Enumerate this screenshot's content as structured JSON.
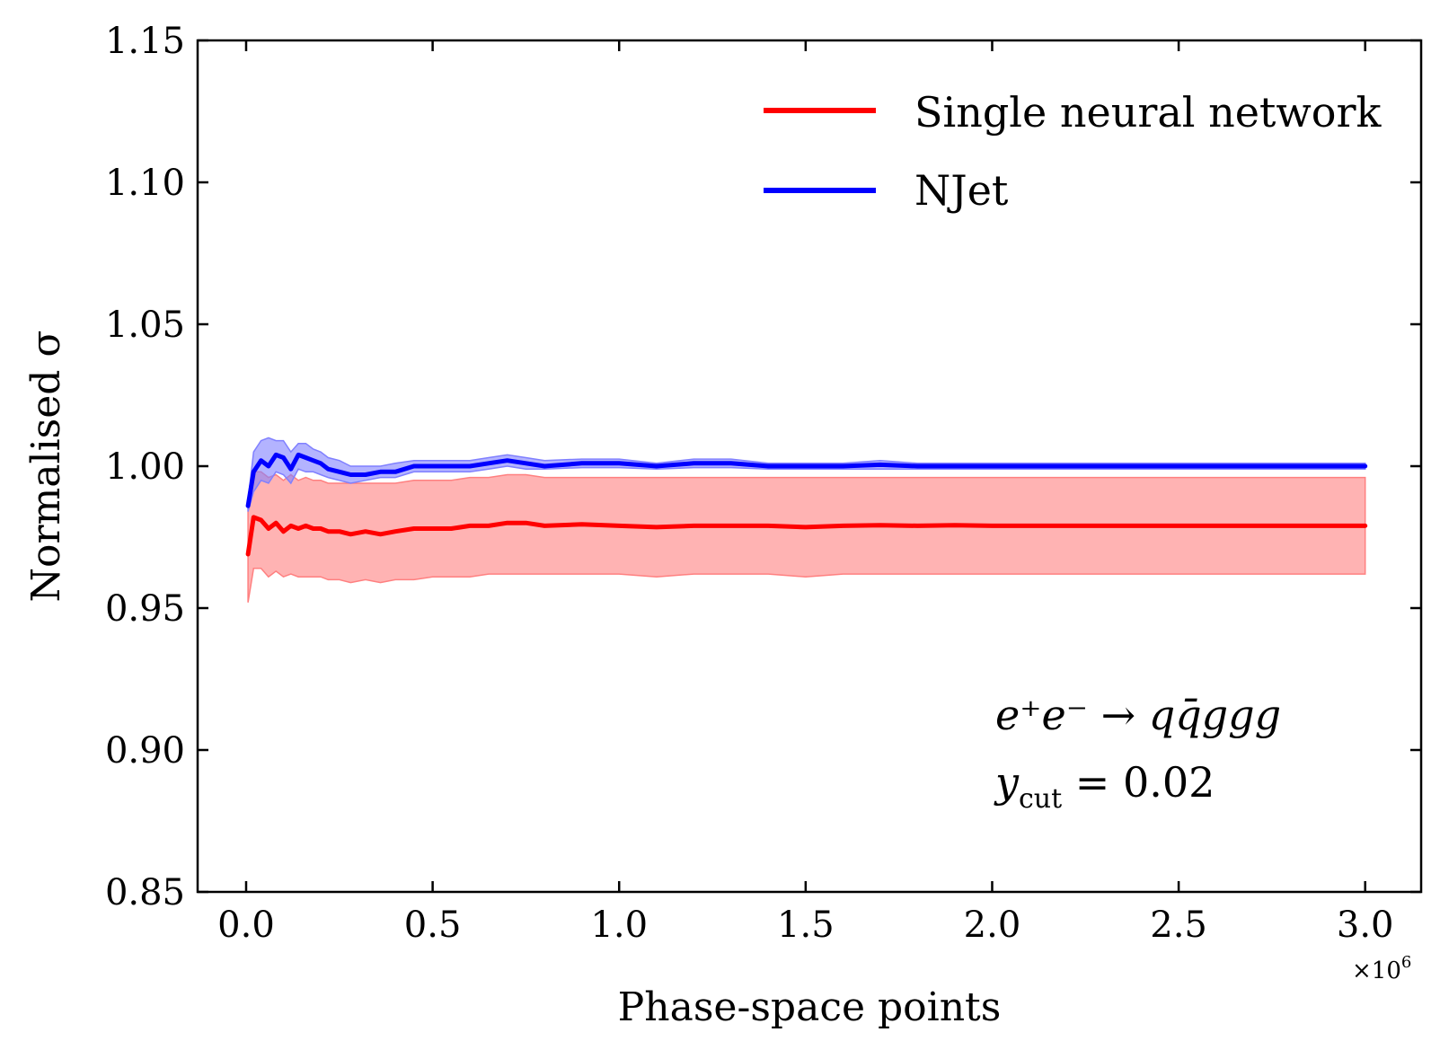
{
  "chart_data": {
    "type": "line",
    "title": "",
    "xlabel": "Phase-space points",
    "ylabel": "Normalised σ",
    "x_offset_label": "×10",
    "x_offset_exp": "6",
    "xlim": [
      -0.13,
      3.15
    ],
    "ylim": [
      0.85,
      1.15
    ],
    "xticks": [
      0.0,
      0.5,
      1.0,
      1.5,
      2.0,
      2.5,
      3.0
    ],
    "xtick_labels": [
      "0.0",
      "0.5",
      "1.0",
      "1.5",
      "2.0",
      "2.5",
      "3.0"
    ],
    "yticks": [
      0.85,
      0.9,
      0.95,
      1.0,
      1.05,
      1.1,
      1.15
    ],
    "ytick_labels": [
      "0.85",
      "0.90",
      "0.95",
      "1.00",
      "1.05",
      "1.10",
      "1.15"
    ],
    "legend_position": "top-right",
    "annotation": {
      "process_main": "e⁺e⁻ → qq̄ggg",
      "cut_symbol": "y",
      "cut_sub": "cut",
      "cut_value": " = 0.02"
    },
    "series": [
      {
        "name": "Single neural network",
        "color": "#ff0000",
        "band_color": "#ff8080",
        "x": [
          0.005,
          0.02,
          0.04,
          0.06,
          0.08,
          0.1,
          0.12,
          0.14,
          0.16,
          0.18,
          0.2,
          0.22,
          0.25,
          0.28,
          0.32,
          0.36,
          0.4,
          0.45,
          0.5,
          0.55,
          0.6,
          0.65,
          0.7,
          0.75,
          0.8,
          0.9,
          1.0,
          1.1,
          1.2,
          1.3,
          1.4,
          1.5,
          1.6,
          1.7,
          1.8,
          1.9,
          2.0,
          2.2,
          2.4,
          2.6,
          2.8,
          3.0
        ],
        "y": [
          0.969,
          0.982,
          0.981,
          0.978,
          0.98,
          0.977,
          0.979,
          0.978,
          0.979,
          0.978,
          0.978,
          0.977,
          0.977,
          0.976,
          0.977,
          0.976,
          0.977,
          0.978,
          0.978,
          0.978,
          0.979,
          0.979,
          0.98,
          0.98,
          0.979,
          0.9795,
          0.979,
          0.9785,
          0.979,
          0.979,
          0.979,
          0.9785,
          0.979,
          0.9792,
          0.979,
          0.9792,
          0.979,
          0.979,
          0.979,
          0.979,
          0.979,
          0.979
        ],
        "lower": [
          0.952,
          0.964,
          0.964,
          0.961,
          0.963,
          0.961,
          0.962,
          0.961,
          0.961,
          0.961,
          0.961,
          0.96,
          0.96,
          0.959,
          0.96,
          0.959,
          0.96,
          0.96,
          0.961,
          0.961,
          0.961,
          0.962,
          0.962,
          0.962,
          0.962,
          0.962,
          0.962,
          0.961,
          0.962,
          0.962,
          0.962,
          0.961,
          0.962,
          0.962,
          0.962,
          0.962,
          0.962,
          0.962,
          0.962,
          0.962,
          0.962,
          0.962
        ],
        "upper": [
          0.987,
          0.998,
          0.998,
          0.996,
          0.997,
          0.995,
          0.997,
          0.995,
          0.996,
          0.995,
          0.995,
          0.994,
          0.994,
          0.994,
          0.994,
          0.994,
          0.994,
          0.995,
          0.995,
          0.995,
          0.996,
          0.996,
          0.997,
          0.997,
          0.996,
          0.996,
          0.996,
          0.996,
          0.996,
          0.996,
          0.996,
          0.996,
          0.996,
          0.996,
          0.996,
          0.996,
          0.996,
          0.996,
          0.996,
          0.996,
          0.996,
          0.996
        ]
      },
      {
        "name": "NJet",
        "color": "#0000ff",
        "band_color": "#8080ff",
        "x": [
          0.005,
          0.02,
          0.04,
          0.06,
          0.08,
          0.1,
          0.12,
          0.14,
          0.16,
          0.18,
          0.2,
          0.22,
          0.25,
          0.28,
          0.32,
          0.36,
          0.4,
          0.45,
          0.5,
          0.55,
          0.6,
          0.65,
          0.7,
          0.75,
          0.8,
          0.9,
          1.0,
          1.1,
          1.2,
          1.3,
          1.4,
          1.5,
          1.6,
          1.7,
          1.8,
          1.9,
          2.0,
          2.2,
          2.4,
          2.6,
          2.8,
          3.0
        ],
        "y": [
          0.986,
          0.998,
          1.002,
          1.0,
          1.004,
          1.003,
          0.999,
          1.004,
          1.003,
          1.002,
          1.001,
          0.999,
          0.998,
          0.997,
          0.997,
          0.998,
          0.998,
          1.0,
          1.0,
          1.0,
          1.0,
          1.001,
          1.002,
          1.001,
          1.0,
          1.001,
          1.001,
          1.0,
          1.001,
          1.001,
          1.0,
          1.0,
          1.0,
          1.0005,
          1.0,
          1.0,
          1.0,
          1.0,
          1.0,
          1.0,
          1.0,
          1.0
        ],
        "lower": [
          0.984,
          0.991,
          0.995,
          0.994,
          0.998,
          0.997,
          0.994,
          0.999,
          0.998,
          0.998,
          0.997,
          0.996,
          0.995,
          0.994,
          0.995,
          0.996,
          0.996,
          0.998,
          0.998,
          0.998,
          0.998,
          0.999,
          1.0,
          0.999,
          0.999,
          0.9995,
          0.9995,
          0.999,
          0.9995,
          0.9995,
          0.999,
          0.999,
          0.999,
          0.999,
          0.999,
          0.999,
          0.999,
          0.999,
          0.999,
          0.999,
          0.999,
          0.999
        ],
        "upper": [
          0.988,
          1.005,
          1.009,
          1.01,
          1.009,
          1.009,
          1.005,
          1.008,
          1.008,
          1.006,
          1.005,
          1.003,
          1.002,
          1.0,
          1.0,
          1.0,
          1.001,
          1.002,
          1.002,
          1.002,
          1.002,
          1.003,
          1.004,
          1.003,
          1.002,
          1.0025,
          1.0025,
          1.001,
          1.0025,
          1.0025,
          1.001,
          1.001,
          1.001,
          1.002,
          1.001,
          1.001,
          1.001,
          1.001,
          1.001,
          1.001,
          1.001,
          1.001
        ]
      }
    ]
  }
}
